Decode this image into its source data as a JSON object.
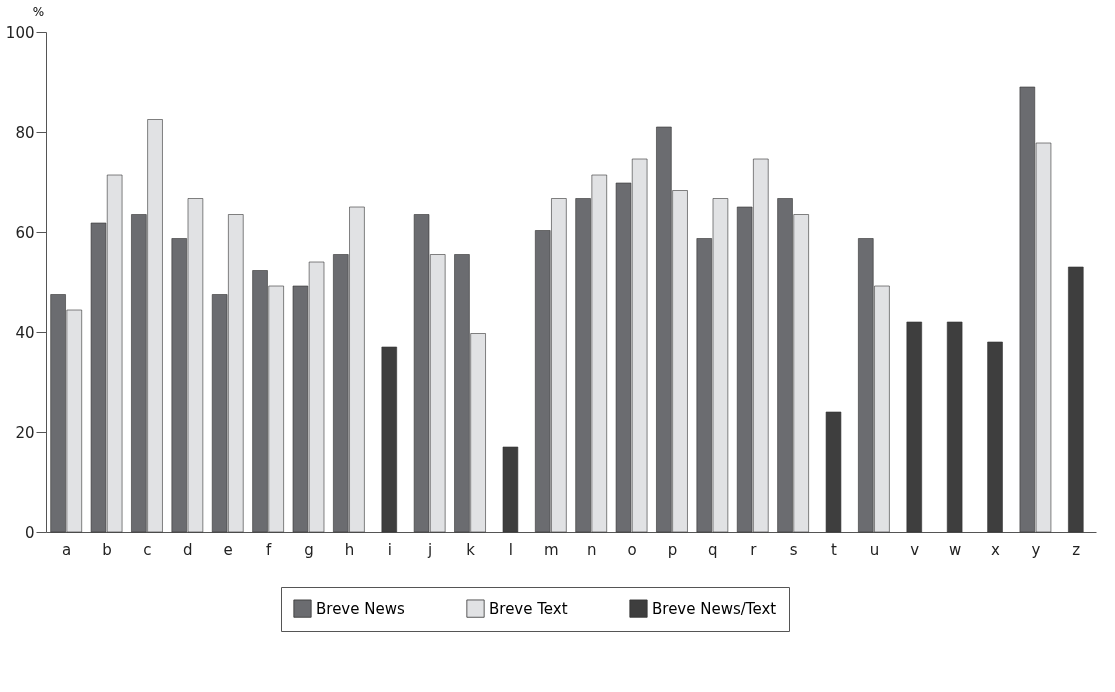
{
  "chart_data": {
    "type": "bar",
    "ylabel": "%",
    "categories": [
      "a",
      "b",
      "c",
      "d",
      "e",
      "f",
      "g",
      "h",
      "i",
      "j",
      "k",
      "l",
      "m",
      "n",
      "o",
      "p",
      "q",
      "r",
      "s",
      "t",
      "u",
      "v",
      "w",
      "x",
      "y",
      "z"
    ],
    "series": [
      {
        "name": "Breve News",
        "color": "#6b6c70",
        "values": [
          47.5,
          61.8,
          63.5,
          58.7,
          47.5,
          52.3,
          49.2,
          55.5,
          null,
          63.5,
          55.5,
          null,
          60.3,
          66.7,
          69.8,
          81,
          58.7,
          65,
          66.7,
          null,
          58.7,
          null,
          null,
          null,
          89,
          null
        ]
      },
      {
        "name": "Breve Text",
        "color": "#e1e2e4",
        "values": [
          44.4,
          71.4,
          82.5,
          66.7,
          63.5,
          49.2,
          54,
          65,
          null,
          55.5,
          39.7,
          null,
          66.7,
          71.4,
          74.6,
          68.3,
          66.7,
          74.6,
          63.5,
          null,
          49.2,
          null,
          null,
          null,
          77.8,
          null
        ]
      },
      {
        "name": "Breve News/Text",
        "color": "#3e3e3e",
        "values": [
          null,
          null,
          null,
          null,
          null,
          null,
          null,
          null,
          37,
          null,
          null,
          17,
          null,
          null,
          null,
          null,
          null,
          null,
          null,
          24,
          null,
          42,
          42,
          38,
          null,
          53
        ]
      }
    ],
    "ylim": [
      0,
      100
    ],
    "yticks": [
      0,
      20,
      40,
      60,
      80,
      100
    ],
    "grid": false,
    "legend": "bottom"
  }
}
